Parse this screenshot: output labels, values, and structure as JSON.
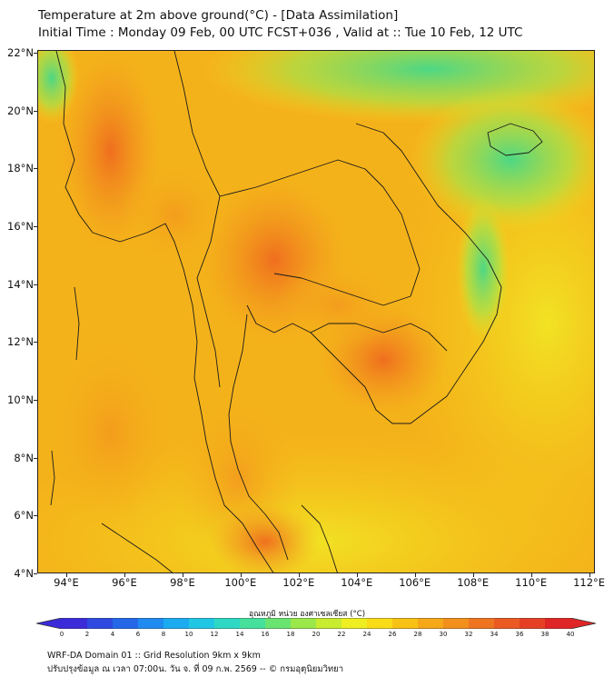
{
  "header": {
    "title_line1": "Temperature at 2m above ground(°C) - [Data Assimilation]",
    "title_line2": "Initial Time : Monday 09 Feb, 00 UTC FCST+036 , Valid at :: Tue 10 Feb, 12 UTC"
  },
  "map": {
    "lat_ticks": [
      "22°N",
      "20°N",
      "18°N",
      "16°N",
      "14°N",
      "12°N",
      "10°N",
      "8°N",
      "6°N",
      "4°N"
    ],
    "lon_ticks": [
      "94°E",
      "96°E",
      "98°E",
      "100°E",
      "102°E",
      "104°E",
      "106°E",
      "108°E",
      "110°E",
      "112°E"
    ],
    "lon_range": [
      93.0,
      112.2
    ],
    "lat_range": [
      4.0,
      22.1
    ],
    "background_color": "#f4b21a",
    "land_line_color": "#1a1a1a"
  },
  "colorbar": {
    "label": "อุณหภูมิ หน่วย องศาเซลเซียส (°C)",
    "ticks": [
      "0",
      "2",
      "4",
      "6",
      "8",
      "10",
      "12",
      "14",
      "16",
      "18",
      "20",
      "22",
      "24",
      "26",
      "28",
      "30",
      "32",
      "34",
      "36",
      "38",
      "40"
    ],
    "colors": [
      "#3b2bd8",
      "#2e49e0",
      "#2468e8",
      "#1f8aef",
      "#1cabf0",
      "#20c7e4",
      "#2fd8c4",
      "#45e09c",
      "#6ae470",
      "#9be84a",
      "#c8ec30",
      "#eeee22",
      "#f9dc16",
      "#f8c214",
      "#f6a818",
      "#f3901c",
      "#ef7420",
      "#ea5a22",
      "#e54024",
      "#e02526"
    ]
  },
  "footer": {
    "line1": "WRF-DA Domain 01 :: Grid Resolution 9km x 9km",
    "line2": "ปรับปรุงข้อมูล ณ เวลา 07:00น. วัน จ. ที่ 09 ก.พ. 2569 -- © กรมอุตุนิยมวิทยา"
  }
}
